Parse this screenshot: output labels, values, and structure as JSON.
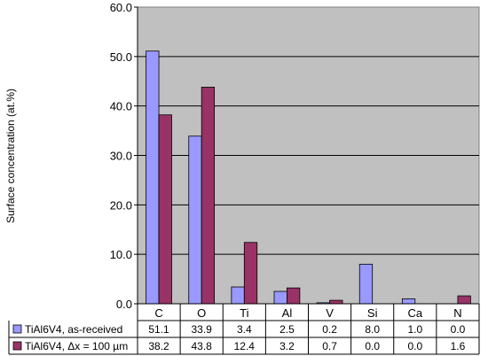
{
  "chart_data": {
    "type": "bar",
    "title": "",
    "xlabel": "",
    "ylabel": "Surface concentration (at.%)",
    "ylim": [
      0,
      60
    ],
    "yticks": [
      "0.0",
      "10.0",
      "20.0",
      "30.0",
      "40.0",
      "50.0",
      "60.0"
    ],
    "grid": true,
    "legend": "data-table",
    "categories": [
      "C",
      "O",
      "Ti",
      "Al",
      "V",
      "Si",
      "Ca",
      "N"
    ],
    "series": [
      {
        "name": "TiAl6V4, as-received",
        "color": "#9999ff",
        "values": [
          51.1,
          33.9,
          3.4,
          2.5,
          0.2,
          8.0,
          1.0,
          0.0
        ],
        "labels": [
          "51.1",
          "33.9",
          "3.4",
          "2.5",
          "0.2",
          "8.0",
          "1.0",
          "0.0"
        ]
      },
      {
        "name": "TiAl6V4, Δx = 100 µm",
        "color": "#993366",
        "values": [
          38.2,
          43.8,
          12.4,
          3.2,
          0.7,
          0.0,
          0.0,
          1.6
        ],
        "labels": [
          "38.2",
          "43.8",
          "12.4",
          "3.2",
          "0.7",
          "0.0",
          "0.0",
          "1.6"
        ]
      }
    ],
    "plot_background": "#c0c0c0"
  }
}
